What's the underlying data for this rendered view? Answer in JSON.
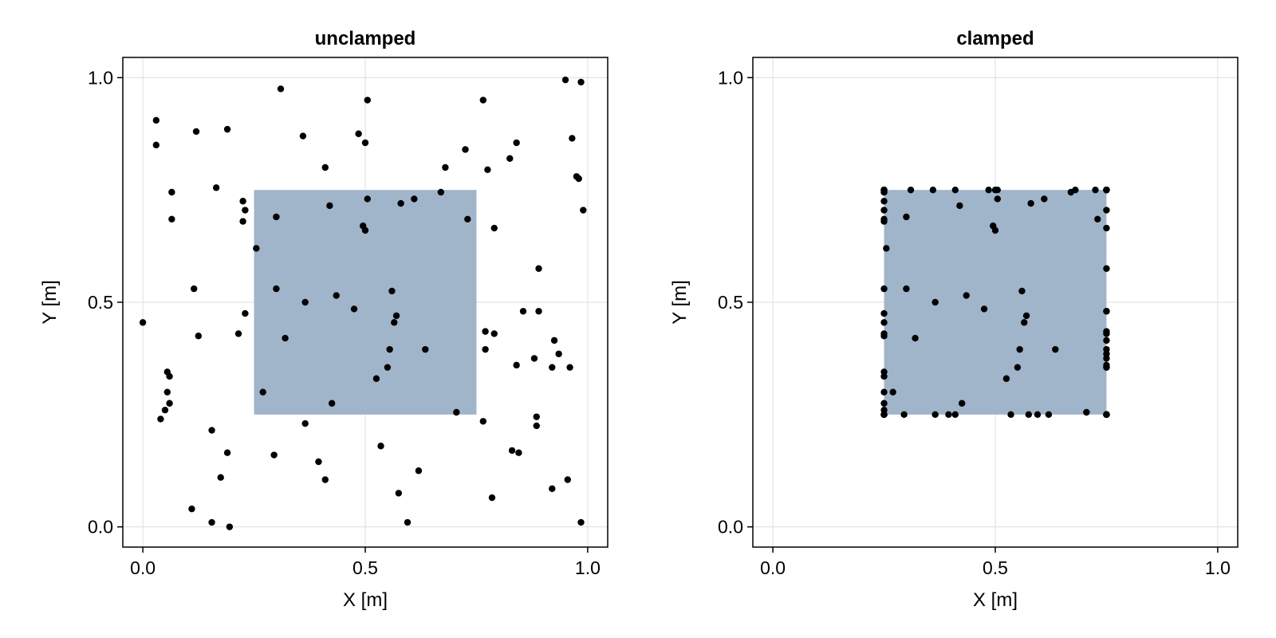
{
  "chart_data": [
    {
      "type": "scatter",
      "title": "unclamped",
      "xlabel": "X [m]",
      "ylabel": "Y [m]",
      "xlim": [
        -0.045,
        1.045
      ],
      "ylim": [
        -0.045,
        1.045
      ],
      "xticks": [
        0.0,
        0.5,
        1.0
      ],
      "yticks": [
        0.0,
        0.5,
        1.0
      ],
      "xtick_labels": [
        "0.0",
        "0.5",
        "1.0"
      ],
      "ytick_labels": [
        "0.0",
        "0.5",
        "1.0"
      ],
      "grid": true,
      "region": {
        "x0": 0.25,
        "x1": 0.75,
        "y0": 0.25,
        "y1": 0.75,
        "color": "#a0b4ca"
      },
      "point_color": "#000000",
      "points": [
        [
          0.0,
          0.455
        ],
        [
          0.03,
          0.85
        ],
        [
          0.03,
          0.905
        ],
        [
          0.04,
          0.24
        ],
        [
          0.05,
          0.26
        ],
        [
          0.055,
          0.3
        ],
        [
          0.055,
          0.345
        ],
        [
          0.06,
          0.335
        ],
        [
          0.06,
          0.275
        ],
        [
          0.065,
          0.745
        ],
        [
          0.065,
          0.685
        ],
        [
          0.11,
          0.04
        ],
        [
          0.115,
          0.53
        ],
        [
          0.12,
          0.88
        ],
        [
          0.125,
          0.425
        ],
        [
          0.155,
          0.01
        ],
        [
          0.155,
          0.215
        ],
        [
          0.165,
          0.755
        ],
        [
          0.175,
          0.11
        ],
        [
          0.19,
          0.885
        ],
        [
          0.19,
          0.165
        ],
        [
          0.195,
          0.0
        ],
        [
          0.215,
          0.43
        ],
        [
          0.225,
          0.68
        ],
        [
          0.225,
          0.725
        ],
        [
          0.23,
          0.705
        ],
        [
          0.23,
          0.475
        ],
        [
          0.255,
          0.62
        ],
        [
          0.27,
          0.3
        ],
        [
          0.295,
          0.16
        ],
        [
          0.3,
          0.69
        ],
        [
          0.3,
          0.53
        ],
        [
          0.31,
          0.975
        ],
        [
          0.32,
          0.42
        ],
        [
          0.36,
          0.87
        ],
        [
          0.365,
          0.5
        ],
        [
          0.365,
          0.23
        ],
        [
          0.395,
          0.145
        ],
        [
          0.41,
          0.105
        ],
        [
          0.41,
          0.8
        ],
        [
          0.42,
          0.715
        ],
        [
          0.425,
          0.275
        ],
        [
          0.435,
          0.515
        ],
        [
          0.475,
          0.485
        ],
        [
          0.485,
          0.875
        ],
        [
          0.495,
          0.67
        ],
        [
          0.5,
          0.66
        ],
        [
          0.5,
          0.855
        ],
        [
          0.505,
          0.95
        ],
        [
          0.505,
          0.73
        ],
        [
          0.525,
          0.33
        ],
        [
          0.535,
          0.18
        ],
        [
          0.55,
          0.355
        ],
        [
          0.555,
          0.395
        ],
        [
          0.56,
          0.525
        ],
        [
          0.565,
          0.455
        ],
        [
          0.57,
          0.47
        ],
        [
          0.575,
          0.075
        ],
        [
          0.58,
          0.72
        ],
        [
          0.595,
          0.01
        ],
        [
          0.61,
          0.73
        ],
        [
          0.62,
          0.125
        ],
        [
          0.635,
          0.395
        ],
        [
          0.67,
          0.745
        ],
        [
          0.68,
          0.8
        ],
        [
          0.705,
          0.255
        ],
        [
          0.725,
          0.84
        ],
        [
          0.73,
          0.685
        ],
        [
          0.765,
          0.235
        ],
        [
          0.77,
          0.435
        ],
        [
          0.77,
          0.395
        ],
        [
          0.765,
          0.95
        ],
        [
          0.775,
          0.795
        ],
        [
          0.785,
          0.065
        ],
        [
          0.79,
          0.43
        ],
        [
          0.79,
          0.665
        ],
        [
          0.825,
          0.82
        ],
        [
          0.83,
          0.17
        ],
        [
          0.84,
          0.855
        ],
        [
          0.84,
          0.36
        ],
        [
          0.845,
          0.165
        ],
        [
          0.855,
          0.48
        ],
        [
          0.88,
          0.375
        ],
        [
          0.885,
          0.225
        ],
        [
          0.885,
          0.245
        ],
        [
          0.89,
          0.575
        ],
        [
          0.89,
          0.48
        ],
        [
          0.92,
          0.355
        ],
        [
          0.92,
          0.085
        ],
        [
          0.925,
          0.415
        ],
        [
          0.935,
          0.385
        ],
        [
          0.95,
          0.995
        ],
        [
          0.955,
          0.105
        ],
        [
          0.96,
          0.355
        ],
        [
          0.965,
          0.865
        ],
        [
          0.975,
          0.78
        ],
        [
          0.98,
          0.775
        ],
        [
          0.985,
          0.99
        ],
        [
          0.985,
          0.01
        ],
        [
          0.99,
          0.705
        ]
      ]
    },
    {
      "type": "scatter",
      "title": "clamped",
      "xlabel": "X [m]",
      "ylabel": "Y [m]",
      "xlim": [
        -0.045,
        1.045
      ],
      "ylim": [
        -0.045,
        1.045
      ],
      "xticks": [
        0.0,
        0.5,
        1.0
      ],
      "yticks": [
        0.0,
        0.5,
        1.0
      ],
      "xtick_labels": [
        "0.0",
        "0.5",
        "1.0"
      ],
      "ytick_labels": [
        "0.0",
        "0.5",
        "1.0"
      ],
      "grid": true,
      "region": {
        "x0": 0.25,
        "x1": 0.75,
        "y0": 0.25,
        "y1": 0.75,
        "color": "#a0b4ca"
      },
      "point_color": "#000000",
      "points": [
        [
          0.25,
          0.455
        ],
        [
          0.25,
          0.75
        ],
        [
          0.25,
          0.745
        ],
        [
          0.25,
          0.25
        ],
        [
          0.25,
          0.26
        ],
        [
          0.25,
          0.3
        ],
        [
          0.25,
          0.345
        ],
        [
          0.25,
          0.335
        ],
        [
          0.25,
          0.275
        ],
        [
          0.25,
          0.745
        ],
        [
          0.25,
          0.685
        ],
        [
          0.25,
          0.25
        ],
        [
          0.25,
          0.53
        ],
        [
          0.25,
          0.75
        ],
        [
          0.25,
          0.425
        ],
        [
          0.25,
          0.25
        ],
        [
          0.25,
          0.25
        ],
        [
          0.25,
          0.75
        ],
        [
          0.25,
          0.25
        ],
        [
          0.25,
          0.75
        ],
        [
          0.25,
          0.25
        ],
        [
          0.25,
          0.25
        ],
        [
          0.25,
          0.43
        ],
        [
          0.25,
          0.68
        ],
        [
          0.25,
          0.725
        ],
        [
          0.25,
          0.705
        ],
        [
          0.25,
          0.475
        ],
        [
          0.255,
          0.62
        ],
        [
          0.27,
          0.3
        ],
        [
          0.295,
          0.25
        ],
        [
          0.3,
          0.69
        ],
        [
          0.3,
          0.53
        ],
        [
          0.31,
          0.75
        ],
        [
          0.32,
          0.42
        ],
        [
          0.36,
          0.75
        ],
        [
          0.365,
          0.5
        ],
        [
          0.365,
          0.25
        ],
        [
          0.395,
          0.25
        ],
        [
          0.41,
          0.25
        ],
        [
          0.41,
          0.75
        ],
        [
          0.42,
          0.715
        ],
        [
          0.425,
          0.275
        ],
        [
          0.435,
          0.515
        ],
        [
          0.475,
          0.485
        ],
        [
          0.485,
          0.75
        ],
        [
          0.495,
          0.67
        ],
        [
          0.5,
          0.66
        ],
        [
          0.5,
          0.75
        ],
        [
          0.505,
          0.75
        ],
        [
          0.505,
          0.73
        ],
        [
          0.525,
          0.33
        ],
        [
          0.535,
          0.25
        ],
        [
          0.55,
          0.355
        ],
        [
          0.555,
          0.395
        ],
        [
          0.56,
          0.525
        ],
        [
          0.565,
          0.455
        ],
        [
          0.57,
          0.47
        ],
        [
          0.575,
          0.25
        ],
        [
          0.58,
          0.72
        ],
        [
          0.595,
          0.25
        ],
        [
          0.61,
          0.73
        ],
        [
          0.62,
          0.25
        ],
        [
          0.635,
          0.395
        ],
        [
          0.67,
          0.745
        ],
        [
          0.68,
          0.75
        ],
        [
          0.705,
          0.255
        ],
        [
          0.725,
          0.75
        ],
        [
          0.73,
          0.685
        ],
        [
          0.75,
          0.25
        ],
        [
          0.75,
          0.435
        ],
        [
          0.75,
          0.395
        ],
        [
          0.75,
          0.75
        ],
        [
          0.75,
          0.75
        ],
        [
          0.75,
          0.25
        ],
        [
          0.75,
          0.43
        ],
        [
          0.75,
          0.665
        ],
        [
          0.75,
          0.75
        ],
        [
          0.75,
          0.25
        ],
        [
          0.75,
          0.75
        ],
        [
          0.75,
          0.36
        ],
        [
          0.75,
          0.25
        ],
        [
          0.75,
          0.48
        ],
        [
          0.75,
          0.375
        ],
        [
          0.75,
          0.25
        ],
        [
          0.75,
          0.25
        ],
        [
          0.75,
          0.575
        ],
        [
          0.75,
          0.48
        ],
        [
          0.75,
          0.355
        ],
        [
          0.75,
          0.25
        ],
        [
          0.75,
          0.415
        ],
        [
          0.75,
          0.385
        ],
        [
          0.75,
          0.75
        ],
        [
          0.75,
          0.25
        ],
        [
          0.75,
          0.355
        ],
        [
          0.75,
          0.75
        ],
        [
          0.75,
          0.75
        ],
        [
          0.75,
          0.75
        ],
        [
          0.75,
          0.75
        ],
        [
          0.75,
          0.25
        ],
        [
          0.75,
          0.705
        ]
      ]
    }
  ]
}
